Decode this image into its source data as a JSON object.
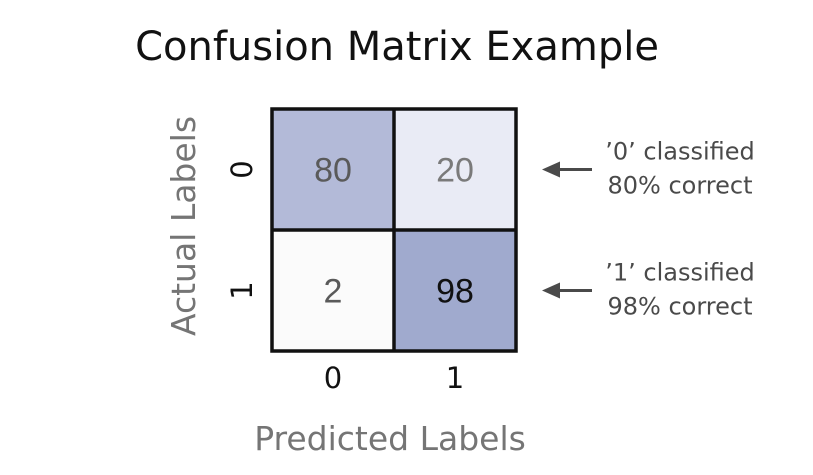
{
  "chart_data": {
    "type": "heatmap",
    "title": "Confusion Matrix Example",
    "xlabel": "Predicted Labels",
    "ylabel": "Actual Labels",
    "x_categories": [
      "0",
      "1"
    ],
    "y_categories": [
      "0",
      "1"
    ],
    "values": [
      [
        80,
        20
      ],
      [
        2,
        98
      ]
    ],
    "cell_colors": [
      [
        "#b3bad8",
        "#e9ebf5"
      ],
      [
        "#fbfbfb",
        "#a0aace"
      ]
    ],
    "value_colors": [
      [
        "#5a5a5a",
        "#7a7a7a"
      ],
      [
        "#5a5a5a",
        "#111111"
      ]
    ],
    "annotations": [
      {
        "row": "0",
        "lines": [
          "’0’ classified",
          "80% correct"
        ]
      },
      {
        "row": "1",
        "lines": [
          "’1’ classified",
          "98% correct"
        ]
      }
    ],
    "border_color": "#111111",
    "arrow_color": "#4a4a4a"
  }
}
